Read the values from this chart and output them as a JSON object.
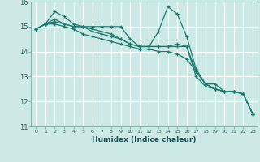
{
  "title": "",
  "xlabel": "Humidex (Indice chaleur)",
  "ylabel": "",
  "background_color": "#cce9e5",
  "plot_bg_color": "#cce9e5",
  "grid_color": "#ffffff",
  "line_color": "#1a7a6e",
  "xlim": [
    -0.5,
    23.5
  ],
  "ylim": [
    11,
    16
  ],
  "yticks": [
    11,
    12,
    13,
    14,
    15,
    16
  ],
  "xticks": [
    0,
    1,
    2,
    3,
    4,
    5,
    6,
    7,
    8,
    9,
    10,
    11,
    12,
    13,
    14,
    15,
    16,
    17,
    18,
    19,
    20,
    21,
    22,
    23
  ],
  "series": [
    [
      14.9,
      15.1,
      15.6,
      15.4,
      15.1,
      15.0,
      15.0,
      15.0,
      15.0,
      15.0,
      14.5,
      14.2,
      14.2,
      14.8,
      15.8,
      15.5,
      14.6,
      13.3,
      12.7,
      12.7,
      12.4,
      12.4,
      12.3,
      11.5
    ],
    [
      14.9,
      15.1,
      15.3,
      15.1,
      15.0,
      15.0,
      14.9,
      14.8,
      14.7,
      14.5,
      14.3,
      14.2,
      14.2,
      14.2,
      14.2,
      14.2,
      14.2,
      13.2,
      12.7,
      12.5,
      12.4,
      12.4,
      12.3,
      11.5
    ],
    [
      14.9,
      15.1,
      15.2,
      15.1,
      15.0,
      15.0,
      14.8,
      14.7,
      14.6,
      14.5,
      14.3,
      14.2,
      14.2,
      14.2,
      14.2,
      14.3,
      14.2,
      13.0,
      12.6,
      12.5,
      12.4,
      12.4,
      12.3,
      11.5
    ],
    [
      14.9,
      15.1,
      15.1,
      15.0,
      14.9,
      14.7,
      14.6,
      14.5,
      14.4,
      14.3,
      14.2,
      14.1,
      14.1,
      14.0,
      14.0,
      13.9,
      13.7,
      13.2,
      12.7,
      12.5,
      12.4,
      12.4,
      12.3,
      11.5
    ]
  ]
}
